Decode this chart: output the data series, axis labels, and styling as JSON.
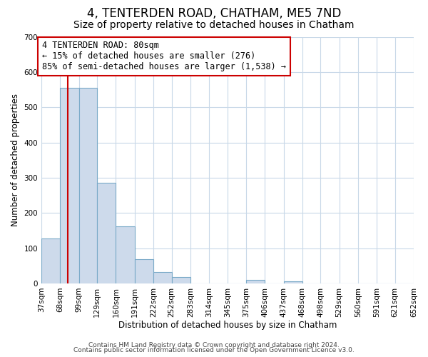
{
  "title": "4, TENTERDEN ROAD, CHATHAM, ME5 7ND",
  "subtitle": "Size of property relative to detached houses in Chatham",
  "xlabel": "Distribution of detached houses by size in Chatham",
  "ylabel": "Number of detached properties",
  "bin_edges": [
    37,
    68,
    99,
    129,
    160,
    191,
    222,
    252,
    283,
    314,
    345,
    375,
    406,
    437,
    468,
    498,
    529,
    560,
    591,
    621,
    652
  ],
  "bin_labels": [
    "37sqm",
    "68sqm",
    "99sqm",
    "129sqm",
    "160sqm",
    "191sqm",
    "222sqm",
    "252sqm",
    "283sqm",
    "314sqm",
    "345sqm",
    "375sqm",
    "406sqm",
    "437sqm",
    "468sqm",
    "498sqm",
    "529sqm",
    "560sqm",
    "591sqm",
    "621sqm",
    "652sqm"
  ],
  "counts": [
    128,
    556,
    556,
    285,
    163,
    68,
    33,
    19,
    0,
    0,
    0,
    10,
    0,
    5,
    0,
    0,
    0,
    0,
    0,
    0
  ],
  "bar_color": "#cddaeb",
  "bar_edge_color": "#7aaac8",
  "vline_x": 80,
  "vline_color": "#cc0000",
  "annotation_text": "4 TENTERDEN ROAD: 80sqm\n← 15% of detached houses are smaller (276)\n85% of semi-detached houses are larger (1,538) →",
  "annotation_box_color": "#ffffff",
  "annotation_box_edge": "#cc0000",
  "ylim": [
    0,
    700
  ],
  "yticks": [
    0,
    100,
    200,
    300,
    400,
    500,
    600,
    700
  ],
  "footer_line1": "Contains HM Land Registry data © Crown copyright and database right 2024.",
  "footer_line2": "Contains public sector information licensed under the Open Government Licence v3.0.",
  "bg_color": "#ffffff",
  "grid_color": "#c8d8e8",
  "title_fontsize": 12,
  "subtitle_fontsize": 10,
  "label_fontsize": 8.5,
  "tick_fontsize": 7.5,
  "annot_fontsize": 8.5,
  "footer_fontsize": 6.5
}
